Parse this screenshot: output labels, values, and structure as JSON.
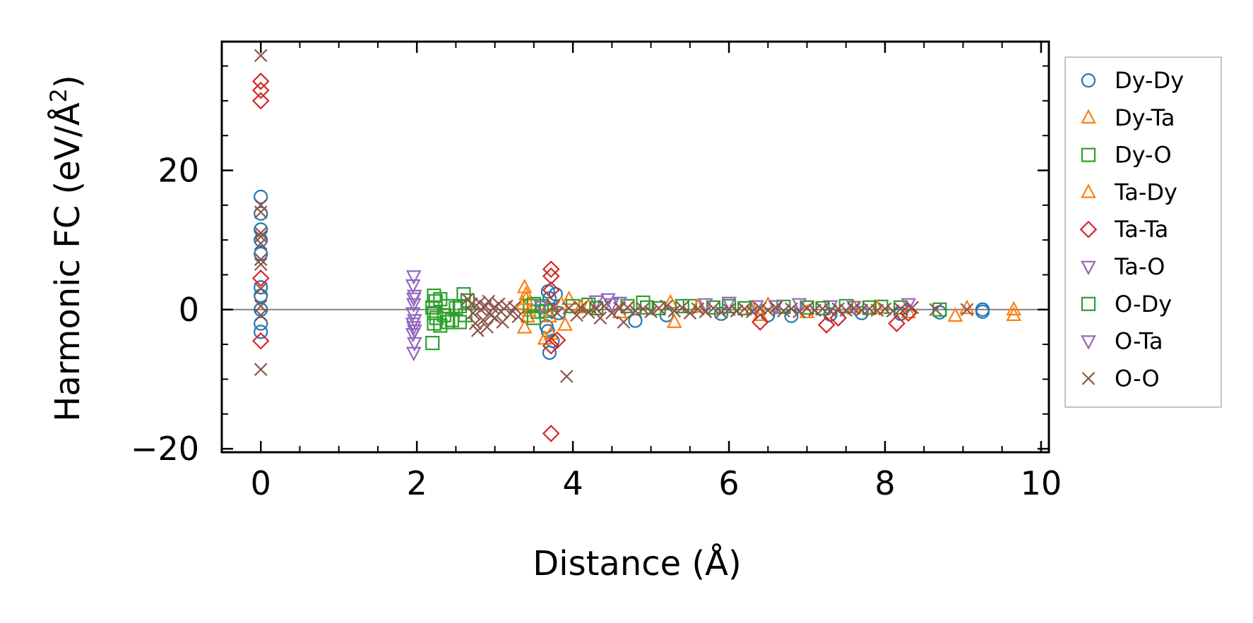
{
  "chart_data": {
    "type": "scatter",
    "title": "",
    "xlabel": "Distance (Å)",
    "ylabel": "Harmonic FC (eV/Å²)",
    "ylabel_main": "Harmonic FC (eV/Å",
    "ylabel_sup": "2",
    "ylabel_end": ")",
    "xlim": [
      -0.5,
      10.1
    ],
    "ylim": [
      -20.5,
      38.5
    ],
    "xticks": [
      0,
      2,
      4,
      6,
      8,
      10
    ],
    "xtick_labels": [
      "0",
      "2",
      "4",
      "6",
      "8",
      "10"
    ],
    "yticks": [
      -20,
      0,
      20
    ],
    "ytick_labels": [
      "−20",
      "0",
      "20"
    ],
    "zero_line": true,
    "grid": false,
    "legend_position": "outside-right",
    "series": [
      {
        "name": "Dy-Dy",
        "marker": "circle",
        "color": "#1f77b4",
        "points": [
          [
            0,
            16.2
          ],
          [
            0,
            13.8
          ],
          [
            0,
            11.5
          ],
          [
            0,
            10.0
          ],
          [
            0,
            8.0
          ],
          [
            0,
            3.2
          ],
          [
            0,
            2.0
          ],
          [
            0,
            0
          ],
          [
            0,
            -2.0
          ],
          [
            0,
            -3.2
          ],
          [
            3.68,
            2.6
          ],
          [
            3.7,
            1.6
          ],
          [
            3.72,
            0
          ],
          [
            3.66,
            -2.4
          ],
          [
            3.68,
            -3.1
          ],
          [
            3.74,
            -4.5
          ],
          [
            3.7,
            -6.2
          ],
          [
            3.78,
            2.2
          ],
          [
            3.82,
            -0.5
          ],
          [
            4.8,
            -1.6
          ],
          [
            5.2,
            -0.8
          ],
          [
            5.9,
            -0.6
          ],
          [
            6.5,
            -0.8
          ],
          [
            6.8,
            -0.9
          ],
          [
            7.3,
            -0.7
          ],
          [
            7.7,
            -0.5
          ],
          [
            8.2,
            -0.6
          ],
          [
            8.7,
            -0.4
          ],
          [
            9.25,
            0
          ],
          [
            9.25,
            -0.3
          ]
        ]
      },
      {
        "name": "Dy-Ta",
        "marker": "triangle-up",
        "color": "#ff7f0e",
        "points": [
          [
            3.38,
            3.2
          ],
          [
            3.4,
            2.2
          ],
          [
            3.36,
            0.8
          ],
          [
            3.42,
            -1.0
          ],
          [
            3.38,
            -2.6
          ],
          [
            3.64,
            -4.2
          ],
          [
            3.72,
            -3.5
          ],
          [
            3.68,
            0.5
          ],
          [
            3.95,
            1.5
          ],
          [
            3.9,
            -2.2
          ],
          [
            4.2,
            0.5
          ],
          [
            5.25,
            1.0
          ],
          [
            5.3,
            -1.8
          ],
          [
            6.4,
            -0.8
          ],
          [
            6.5,
            0.7
          ],
          [
            7.6,
            0.3
          ],
          [
            8.3,
            -0.4
          ],
          [
            8.9,
            -0.9
          ],
          [
            9.65,
            0
          ],
          [
            9.65,
            -0.8
          ]
        ]
      },
      {
        "name": "Dy-O",
        "marker": "square",
        "color": "#2ca02c",
        "points": [
          [
            2.22,
            2.0
          ],
          [
            2.24,
            1.2
          ],
          [
            2.2,
            0.3
          ],
          [
            2.22,
            -0.5
          ],
          [
            2.25,
            -1.2
          ],
          [
            2.22,
            -2.0
          ],
          [
            2.2,
            -4.8
          ],
          [
            2.3,
            1.5
          ],
          [
            2.35,
            -0.8
          ],
          [
            2.4,
            0.5
          ],
          [
            2.45,
            -1.5
          ],
          [
            2.5,
            0.2
          ],
          [
            2.55,
            -1.8
          ],
          [
            2.6,
            2.2
          ],
          [
            2.62,
            -0.8
          ],
          [
            3.45,
            0.5
          ],
          [
            3.5,
            0.8
          ],
          [
            3.55,
            -0.3
          ],
          [
            3.6,
            0.5
          ],
          [
            3.65,
            -0.2
          ],
          [
            4.0,
            0.5
          ],
          [
            4.2,
            0.7
          ],
          [
            4.9,
            1.0
          ],
          [
            4.95,
            0.3
          ],
          [
            5.1,
            0.2
          ],
          [
            5.5,
            0.5
          ],
          [
            5.8,
            0.3
          ],
          [
            6.0,
            0.5
          ],
          [
            7.0,
            0.3
          ],
          [
            7.5,
            0.5
          ],
          [
            7.95,
            0.4
          ],
          [
            8.2,
            0.3
          ],
          [
            8.7,
            0
          ]
        ]
      },
      {
        "name": "Ta-Dy",
        "marker": "triangle-up",
        "color": "#ff7f0e",
        "points": [
          [
            3.4,
            1.5
          ],
          [
            3.44,
            -0.2
          ],
          [
            3.7,
            -1.0
          ],
          [
            3.85,
            0.8
          ],
          [
            4.1,
            0.3
          ],
          [
            4.6,
            -0.4
          ],
          [
            5.6,
            0.4
          ],
          [
            6.3,
            0.2
          ],
          [
            7.0,
            -0.4
          ],
          [
            7.9,
            0.2
          ],
          [
            9.05,
            0.2
          ]
        ]
      },
      {
        "name": "Ta-Ta",
        "marker": "diamond",
        "color": "#d62728",
        "points": [
          [
            0,
            32.8
          ],
          [
            0,
            31.5
          ],
          [
            0,
            30.0
          ],
          [
            0,
            4.5
          ],
          [
            0,
            -4.5
          ],
          [
            3.72,
            5.8
          ],
          [
            3.72,
            4.8
          ],
          [
            3.72,
            2.8
          ],
          [
            3.72,
            -5.2
          ],
          [
            3.72,
            -17.8
          ],
          [
            3.8,
            -4.4
          ],
          [
            6.4,
            -1.8
          ],
          [
            7.25,
            -2.2
          ],
          [
            7.4,
            -1.2
          ],
          [
            8.15,
            -2.0
          ],
          [
            8.3,
            -0.5
          ]
        ]
      },
      {
        "name": "Ta-O",
        "marker": "triangle-down",
        "color": "#9467bd",
        "points": [
          [
            1.96,
            4.8
          ],
          [
            1.95,
            3.5
          ],
          [
            1.97,
            2.0
          ],
          [
            1.96,
            0.8
          ],
          [
            1.95,
            -0.5
          ],
          [
            1.97,
            -1.5
          ],
          [
            1.96,
            -2.5
          ],
          [
            1.95,
            -3.5
          ],
          [
            1.97,
            -4.8
          ],
          [
            1.96,
            -6.2
          ],
          [
            4.3,
            1.2
          ],
          [
            4.45,
            1.5
          ],
          [
            4.5,
            0.8
          ],
          [
            6.0,
            1.0
          ],
          [
            6.35,
            0.5
          ],
          [
            6.9,
            0.8
          ],
          [
            7.3,
            0.5
          ],
          [
            8.3,
            0.8
          ]
        ]
      },
      {
        "name": "O-Dy",
        "marker": "square",
        "color": "#2ca02c",
        "points": [
          [
            2.3,
            -2.3
          ],
          [
            2.4,
            -1.8
          ],
          [
            2.55,
            0.5
          ],
          [
            2.65,
            1.3
          ],
          [
            3.5,
            -1.2
          ],
          [
            4.3,
            0.2
          ],
          [
            4.7,
            0.5
          ],
          [
            5.4,
            0.5
          ],
          [
            6.2,
            0.2
          ],
          [
            6.7,
            0.4
          ],
          [
            7.2,
            0.2
          ],
          [
            7.8,
            0.3
          ]
        ]
      },
      {
        "name": "O-Ta",
        "marker": "triangle-down",
        "color": "#9467bd",
        "points": [
          [
            1.96,
            1.6
          ],
          [
            1.95,
            -2.0
          ],
          [
            1.97,
            -3.0
          ],
          [
            3.6,
            0.4
          ],
          [
            4.6,
            1.0
          ],
          [
            5.7,
            0.8
          ],
          [
            6.6,
            0.5
          ],
          [
            7.6,
            0.4
          ]
        ]
      },
      {
        "name": "O-O",
        "marker": "x",
        "color": "#8c564b",
        "points": [
          [
            0,
            36.5
          ],
          [
            0,
            15.0
          ],
          [
            0,
            14.0
          ],
          [
            0,
            11.0
          ],
          [
            0,
            10.5
          ],
          [
            0,
            9.5
          ],
          [
            0,
            7.2
          ],
          [
            0,
            6.5
          ],
          [
            0,
            3.0
          ],
          [
            0,
            0.5
          ],
          [
            0,
            -0.8
          ],
          [
            0,
            -8.6
          ],
          [
            2.65,
            1.5
          ],
          [
            2.7,
            0.8
          ],
          [
            2.72,
            -0.5
          ],
          [
            2.75,
            -2.0
          ],
          [
            2.78,
            -3.0
          ],
          [
            2.8,
            1.0
          ],
          [
            2.82,
            0
          ],
          [
            2.85,
            -1.5
          ],
          [
            2.88,
            0.5
          ],
          [
            2.9,
            -2.5
          ],
          [
            2.92,
            1.2
          ],
          [
            2.95,
            -0.8
          ],
          [
            2.98,
            0.2
          ],
          [
            3.0,
            -1.2
          ],
          [
            3.05,
            0.8
          ],
          [
            3.08,
            -0.3
          ],
          [
            3.1,
            -1.8
          ],
          [
            3.15,
            0.5
          ],
          [
            3.2,
            -0.6
          ],
          [
            3.25,
            0.3
          ],
          [
            3.3,
            -1.0
          ],
          [
            3.92,
            -9.6
          ],
          [
            3.75,
            0.5
          ],
          [
            3.8,
            -0.5
          ],
          [
            3.95,
            0.2
          ],
          [
            4.05,
            -0.8
          ],
          [
            4.1,
            0.3
          ],
          [
            4.2,
            -0.4
          ],
          [
            4.3,
            0.1
          ],
          [
            4.35,
            -1.2
          ],
          [
            4.4,
            0.5
          ],
          [
            4.5,
            -0.5
          ],
          [
            4.6,
            0.2
          ],
          [
            4.65,
            -1.8
          ],
          [
            4.7,
            0.3
          ],
          [
            4.8,
            -0.2
          ],
          [
            4.9,
            0.1
          ],
          [
            5.0,
            -0.3
          ],
          [
            5.1,
            0.2
          ],
          [
            5.2,
            0.5
          ],
          [
            5.3,
            -0.2
          ],
          [
            5.4,
            0.3
          ],
          [
            5.5,
            -0.5
          ],
          [
            5.6,
            0.1
          ],
          [
            5.7,
            -0.3
          ],
          [
            5.8,
            0.2
          ],
          [
            5.9,
            -0.4
          ],
          [
            6.0,
            0
          ],
          [
            6.1,
            -0.2
          ],
          [
            6.2,
            0.1
          ],
          [
            6.3,
            -0.3
          ],
          [
            6.4,
            0.2
          ],
          [
            6.5,
            -0.1
          ],
          [
            6.6,
            0.3
          ],
          [
            6.7,
            -0.2
          ],
          [
            6.8,
            0.1
          ],
          [
            6.9,
            -0.3
          ],
          [
            7.0,
            0.2
          ],
          [
            7.1,
            -0.1
          ],
          [
            7.2,
            0.1
          ],
          [
            7.3,
            -0.2
          ],
          [
            7.4,
            0.1
          ],
          [
            7.5,
            -0.1
          ],
          [
            7.6,
            0.2
          ],
          [
            7.7,
            -0.1
          ],
          [
            7.8,
            0.1
          ],
          [
            7.9,
            -0.1
          ],
          [
            8.0,
            0.1
          ],
          [
            8.1,
            -0.2
          ],
          [
            8.2,
            0.1
          ],
          [
            8.35,
            0.3
          ],
          [
            8.65,
            0
          ],
          [
            9.05,
            0
          ]
        ]
      }
    ]
  }
}
